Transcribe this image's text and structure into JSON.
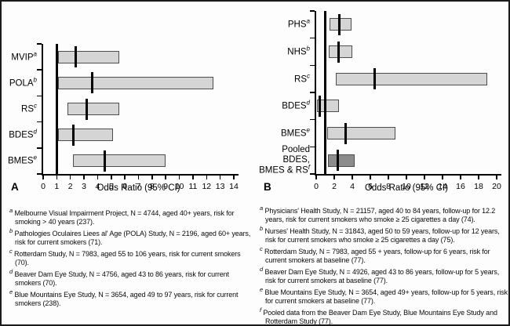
{
  "colors": {
    "bar_fill": "#d5d5d5",
    "bar_border": "#4d4d4d",
    "pooled_fill": "#8c8c8c",
    "axis": "#000000"
  },
  "chart_data": [
    {
      "type": "bar",
      "subtype": "horizontal-forest-plot",
      "panel_label": "A",
      "title": "",
      "xlabel": "Odds Ratio (95% CI)",
      "axis": {
        "min": 0,
        "max": 14,
        "ticks": [
          0,
          1,
          2,
          3,
          4,
          5,
          6,
          7,
          8,
          9,
          10,
          11,
          12,
          13,
          14
        ]
      },
      "reference_line": 1,
      "legend": "none",
      "grid": false,
      "studies": [
        {
          "label": "MVIP",
          "sup": "a",
          "or": 2.4,
          "ci_low": 1.1,
          "ci_high": 5.6
        },
        {
          "label": "POLA",
          "sup": "b",
          "or": 3.6,
          "ci_low": 1.1,
          "ci_high": 12.5
        },
        {
          "label": "RS",
          "sup": "c",
          "or": 3.2,
          "ci_low": 1.8,
          "ci_high": 5.6
        },
        {
          "label": "BDES",
          "sup": "d",
          "or": 2.2,
          "ci_low": 1.1,
          "ci_high": 5.1
        },
        {
          "label": "BMES",
          "sup": "e",
          "or": 4.5,
          "ci_low": 2.2,
          "ci_high": 9.0
        }
      ]
    },
    {
      "type": "bar",
      "subtype": "horizontal-forest-plot",
      "panel_label": "B",
      "title": "",
      "xlabel": "Odds Ratio (95% CI)",
      "axis": {
        "min": 0,
        "max": 20,
        "ticks": [
          0,
          2,
          4,
          6,
          8,
          10,
          12,
          14,
          16,
          18,
          20
        ]
      },
      "reference_line": 1,
      "legend": "none",
      "grid": false,
      "studies": [
        {
          "label": "PHS",
          "sup": "a",
          "or": 2.6,
          "ci_low": 1.5,
          "ci_high": 3.9
        },
        {
          "label": "NHS",
          "sup": "b",
          "or": 2.5,
          "ci_low": 1.4,
          "ci_high": 4.0
        },
        {
          "label": "RS",
          "sup": "c",
          "or": 6.5,
          "ci_low": 2.2,
          "ci_high": 19.0
        },
        {
          "label": "BDES",
          "sup": "d",
          "or": 0.4,
          "ci_low": 0.1,
          "ci_high": 2.5
        },
        {
          "label": "BMES",
          "sup": "e",
          "or": 3.3,
          "ci_low": 1.2,
          "ci_high": 8.8
        },
        {
          "label": "Pooled BDES,\nBMES & RS",
          "sup": "f",
          "or": 2.4,
          "ci_low": 1.3,
          "ci_high": 4.3,
          "pooled": true
        }
      ]
    }
  ],
  "footnotes": {
    "left": [
      {
        "sup": "a",
        "text": "Melbourne Visual Impairment Project, N = 4744, aged 40+ years, risk for smoking > 40 years (237)."
      },
      {
        "sup": "b",
        "text": "Pathologies Oculaires Liees al' Age (POLA) Study, N = 2196, aged 60+ years, risk for current smokers (71)."
      },
      {
        "sup": "c",
        "text": "Rotterdam Study, N = 7983, aged 55 to 106 years, risk for current smokers (70)."
      },
      {
        "sup": "d",
        "text": "Beaver Dam Eye Study, N = 4756, aged 43 to 86 years, risk for current smokers (70)."
      },
      {
        "sup": "e",
        "text": "Blue Mountains Eye Study, N = 3654, aged 49 to 97 years, risk for current smokers (238)."
      }
    ],
    "right": [
      {
        "sup": "a",
        "text": "Physicians' Health Study, N = 21157, aged 40 to 84 years, follow-up for 12.2 years, risk for current smokers who smoke ≥ 25 cigarettes a day (74)."
      },
      {
        "sup": "b",
        "text": "Nurses' Health Study, N = 31843, aged 50 to 59 years, follow-up for 12 years, risk for current smokers who smoke ≥ 25 cigarettes a day (75)."
      },
      {
        "sup": "c",
        "text": "Rotterdam Study, N = 7983, aged 55 + years, follow-up for 6 years, risk for current smokers at baseline (77)."
      },
      {
        "sup": "d",
        "text": "Beaver Dam Eye Study, N = 4926, aged 43 to 86 years, follow-up for 5 years, risk for current smokers at baseline (77)."
      },
      {
        "sup": "e",
        "text": "Blue Mountains Eye Study, N = 3654, aged 49+ years, follow-up for 5 years, risk for current smokers at baseline (77)."
      },
      {
        "sup": "f",
        "text": "Pooled data from the Beaver Dam Eye Study, Blue Mountains Eye Study and Rotterdam Study (77)."
      }
    ]
  }
}
